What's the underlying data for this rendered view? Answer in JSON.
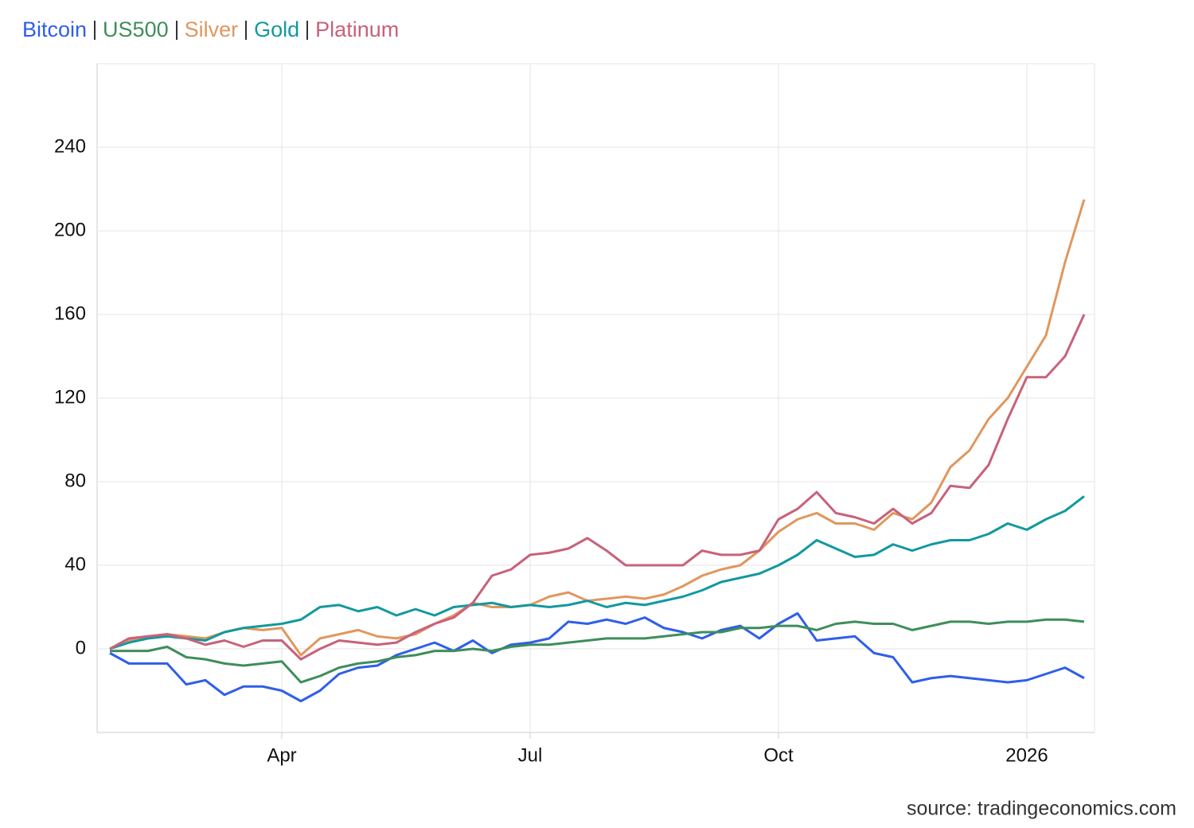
{
  "chart_data": {
    "type": "line",
    "categories": [
      null,
      null,
      null,
      null,
      null,
      null,
      null,
      null,
      null,
      "Apr",
      null,
      null,
      null,
      null,
      null,
      null,
      null,
      null,
      null,
      null,
      null,
      null,
      "Jul",
      null,
      null,
      null,
      null,
      null,
      null,
      null,
      null,
      null,
      null,
      null,
      null,
      "Oct",
      null,
      null,
      null,
      null,
      null,
      null,
      null,
      null,
      null,
      null,
      null,
      null,
      "2026",
      null,
      null,
      null
    ],
    "series": [
      {
        "name": "Bitcoin",
        "color": "#2f5fe8",
        "values": [
          -2,
          -7,
          -7,
          -7,
          -17,
          -15,
          -22,
          -18,
          -18,
          -20,
          -25,
          -20,
          -12,
          -9,
          -8,
          -3,
          0,
          3,
          -1,
          4,
          -2,
          2,
          3,
          5,
          13,
          12,
          14,
          12,
          15,
          10,
          8,
          5,
          9,
          11,
          5,
          12,
          17,
          4,
          5,
          6,
          -2,
          -4,
          -16,
          -14,
          -13,
          -14,
          -15,
          -16,
          -15,
          -12,
          -9,
          -14
        ]
      },
      {
        "name": "US500",
        "color": "#3e8e5a",
        "values": [
          -1,
          -1,
          -1,
          1,
          -4,
          -5,
          -7,
          -8,
          -7,
          -6,
          -16,
          -13,
          -9,
          -7,
          -6,
          -4,
          -3,
          -1,
          -1,
          0,
          -1,
          1,
          2,
          2,
          3,
          4,
          5,
          5,
          5,
          6,
          7,
          8,
          8,
          10,
          10,
          11,
          11,
          9,
          12,
          13,
          12,
          12,
          9,
          11,
          13,
          13,
          12,
          13,
          13,
          14,
          14,
          13
        ]
      },
      {
        "name": "Silver",
        "color": "#e0975e",
        "values": [
          0,
          4,
          6,
          7,
          6,
          5,
          8,
          10,
          9,
          10,
          -3,
          5,
          7,
          9,
          6,
          5,
          7,
          12,
          16,
          22,
          20,
          20,
          21,
          25,
          27,
          23,
          24,
          25,
          24,
          26,
          30,
          35,
          38,
          40,
          47,
          56,
          62,
          65,
          60,
          60,
          57,
          65,
          62,
          70,
          87,
          95,
          110,
          120,
          135,
          150,
          185,
          215
        ]
      },
      {
        "name": "Gold",
        "color": "#12999f",
        "values": [
          0,
          3,
          5,
          6,
          5,
          4,
          8,
          10,
          11,
          12,
          14,
          20,
          21,
          18,
          20,
          16,
          19,
          16,
          20,
          21,
          22,
          20,
          21,
          20,
          21,
          23,
          20,
          22,
          21,
          23,
          25,
          28,
          32,
          34,
          36,
          40,
          45,
          52,
          48,
          44,
          45,
          50,
          47,
          50,
          52,
          52,
          55,
          60,
          57,
          62,
          66,
          73
        ]
      },
      {
        "name": "Platinum",
        "color": "#c8627a",
        "values": [
          0,
          5,
          6,
          7,
          5,
          2,
          4,
          1,
          4,
          4,
          -5,
          0,
          4,
          3,
          2,
          3,
          8,
          12,
          15,
          22,
          35,
          38,
          45,
          46,
          48,
          53,
          47,
          40,
          40,
          40,
          40,
          47,
          45,
          45,
          47,
          62,
          67,
          75,
          65,
          63,
          60,
          67,
          60,
          65,
          78,
          77,
          88,
          110,
          130,
          130,
          140,
          160
        ]
      }
    ],
    "ylim": [
      -40,
      280
    ],
    "yticks": [
      0,
      40,
      80,
      120,
      160,
      200,
      240
    ],
    "grid": true,
    "source": "source: tradingeconomics.com"
  }
}
